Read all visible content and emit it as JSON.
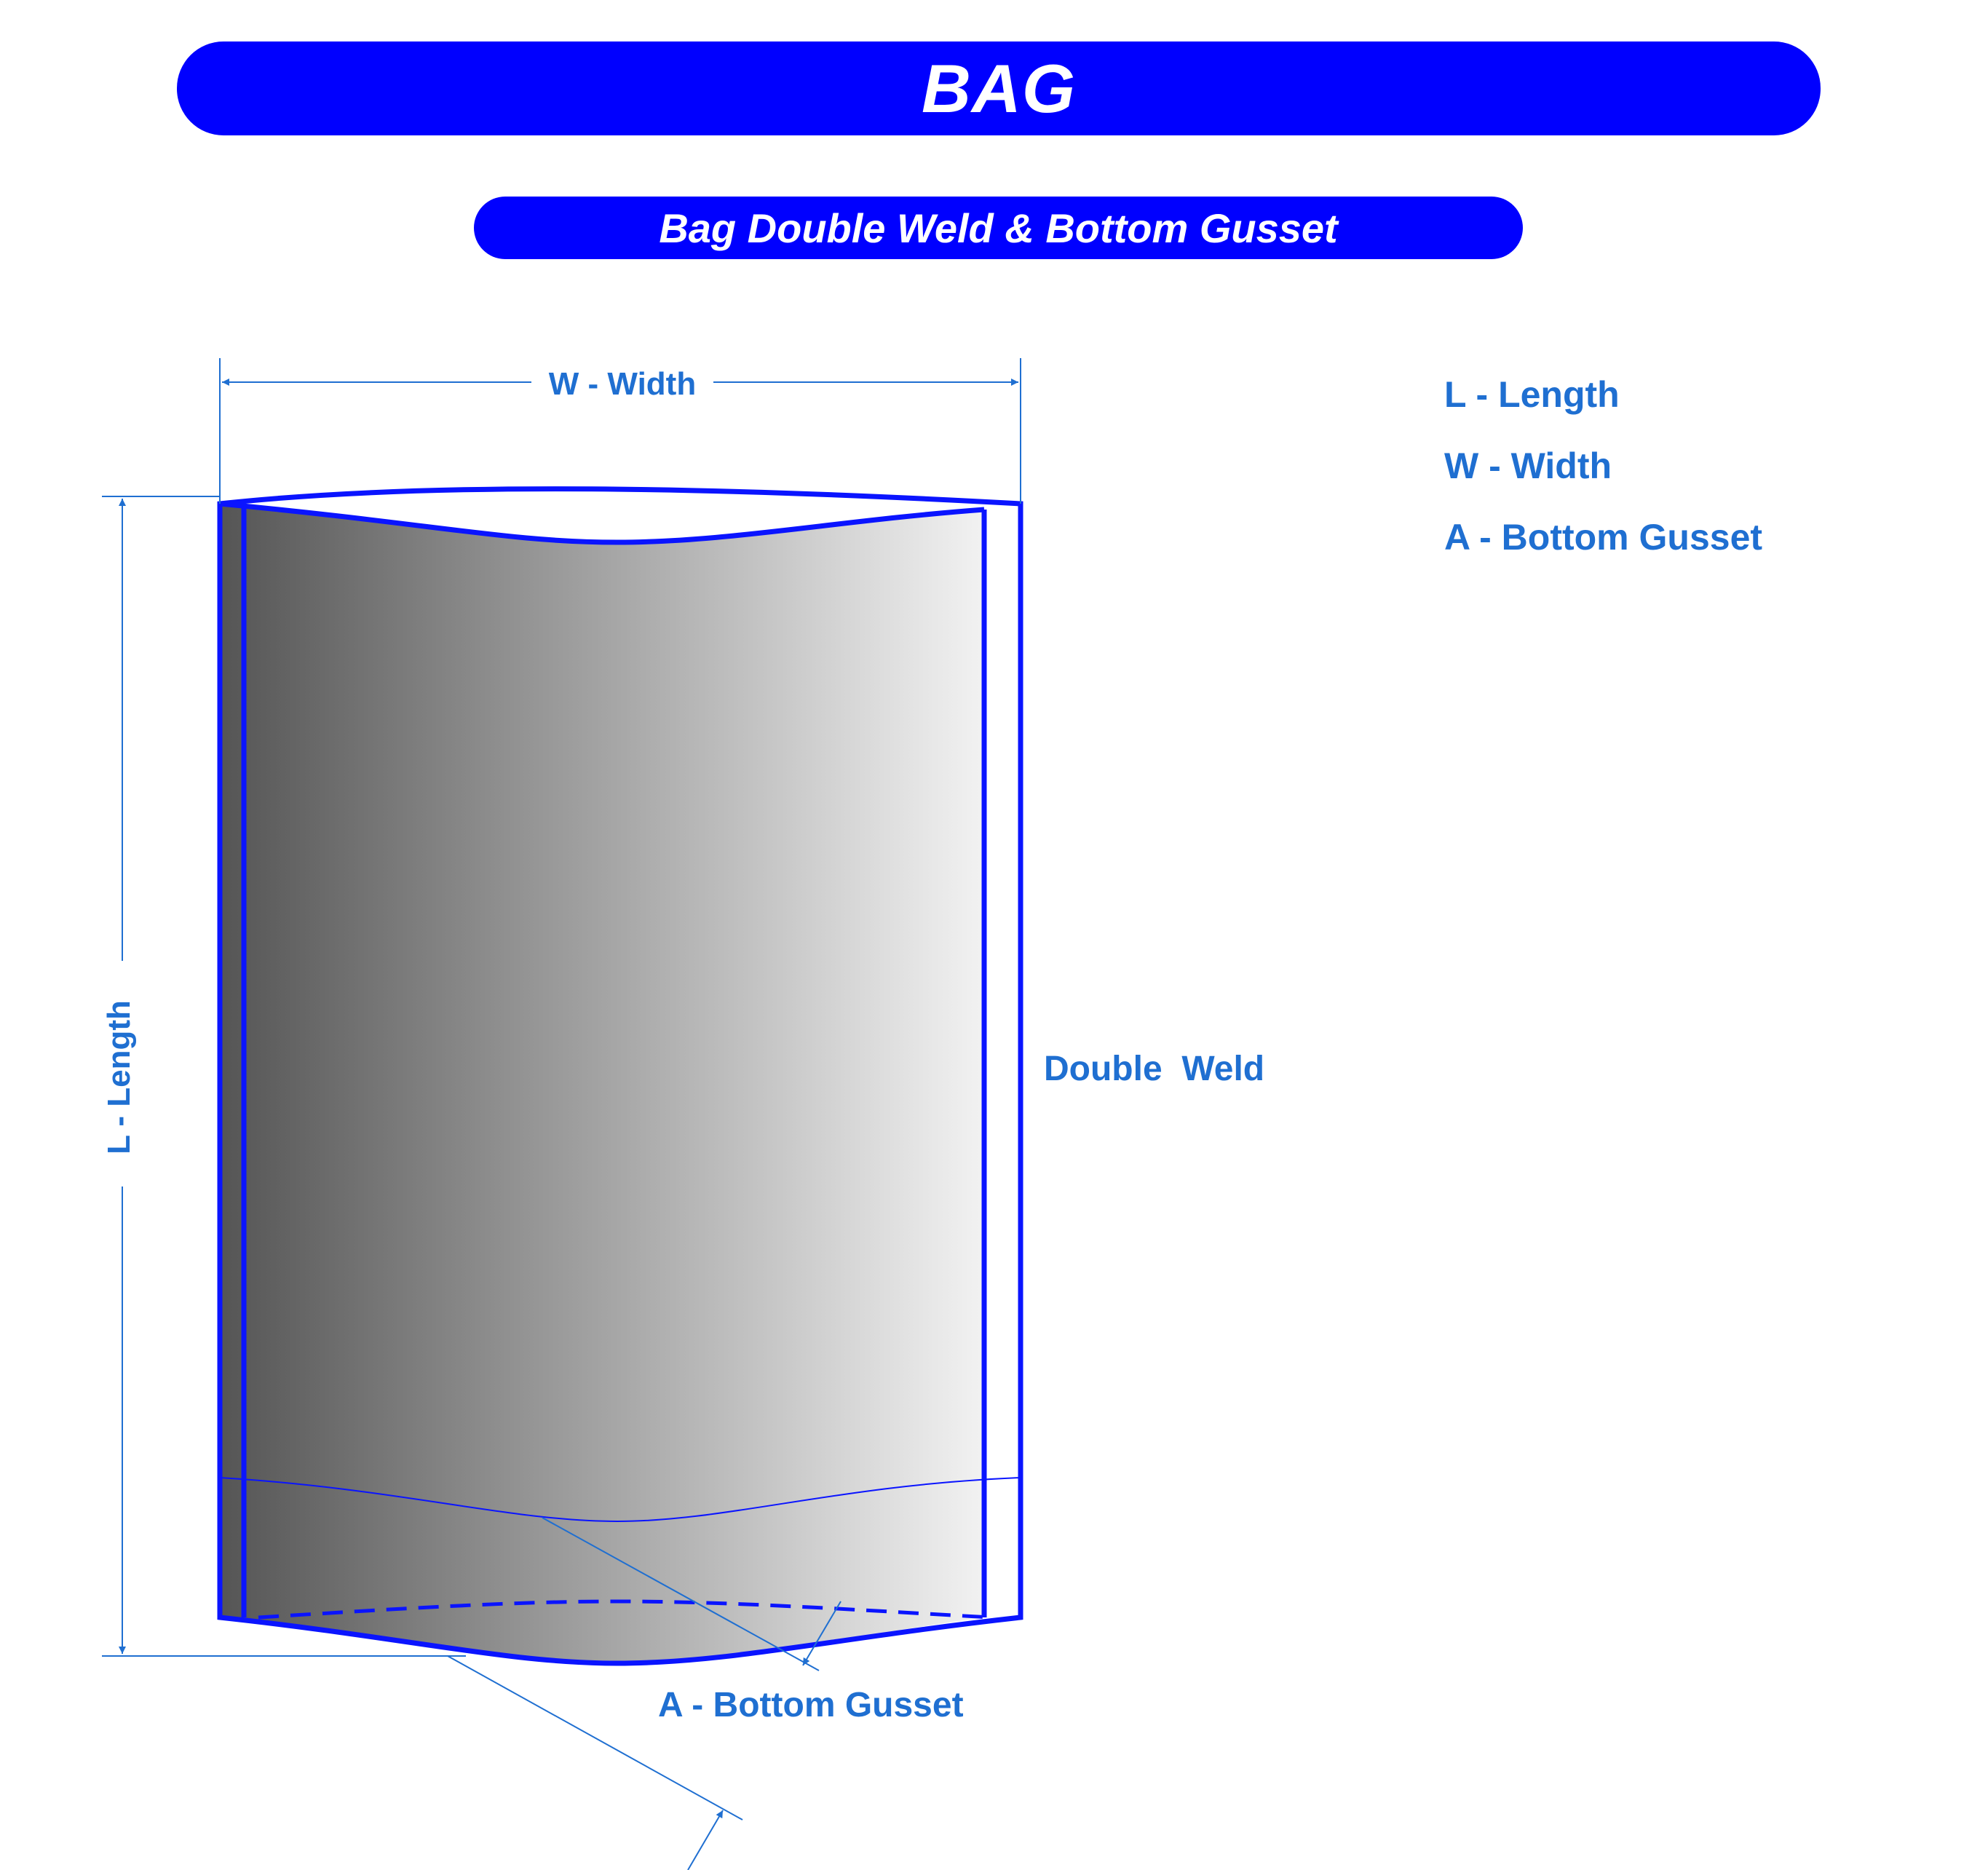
{
  "header": {
    "title": "BAG",
    "subtitle": "Bag Double Weld & Bottom Gusset"
  },
  "dimensions": {
    "width_label": "W - Width",
    "length_label": "L - Length",
    "double_weld_label": "Double  Weld",
    "gusset_label": "A - Bottom Gusset"
  },
  "legend": {
    "items": [
      {
        "label": "L - Length"
      },
      {
        "label": "W - Width"
      },
      {
        "label": "A - Bottom Gusset"
      }
    ]
  },
  "colors": {
    "banner": "#0000ff",
    "outline": "#0a14ff",
    "dimension": "#1f6fd1",
    "gradient_dark": "#555555",
    "gradient_light": "#f2f2f2"
  }
}
